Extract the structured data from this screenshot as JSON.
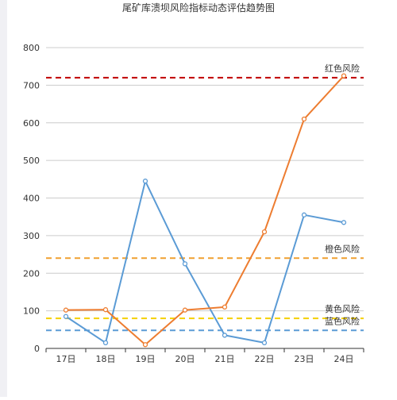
{
  "chart_data": {
    "type": "line",
    "title": "尾矿库溃坝风险指标动态评估趋势图",
    "xlabel": "",
    "ylabel": "",
    "categories": [
      "17日",
      "18日",
      "19日",
      "20日",
      "21日",
      "22日",
      "23日",
      "24日"
    ],
    "ylim": [
      0,
      800
    ],
    "yticks": [
      0,
      100,
      200,
      300,
      400,
      500,
      600,
      700,
      800
    ],
    "grid": true,
    "series": [
      {
        "name": "",
        "color": "#5b9bd5",
        "values": [
          85,
          15,
          445,
          225,
          35,
          15,
          355,
          335
        ]
      },
      {
        "name": "",
        "color": "#ed7d31",
        "values": [
          102,
          103,
          10,
          102,
          110,
          310,
          610,
          725
        ]
      }
    ],
    "reference_lines": [
      {
        "label": "红色风险",
        "value": 720,
        "color": "#c00000"
      },
      {
        "label": "橙色风险",
        "value": 240,
        "color": "#f0a030"
      },
      {
        "label": "黄色风险",
        "value": 80,
        "color": "#f5d000"
      },
      {
        "label": "蓝色风险",
        "value": 48,
        "color": "#5b9bd5"
      }
    ]
  }
}
